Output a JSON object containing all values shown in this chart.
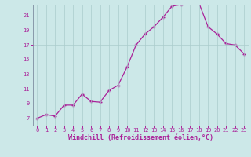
{
  "x": [
    0,
    1,
    2,
    3,
    4,
    5,
    6,
    7,
    8,
    9,
    10,
    11,
    12,
    13,
    14,
    15,
    16,
    17,
    18,
    19,
    20,
    21,
    22,
    23
  ],
  "y": [
    7.0,
    7.5,
    7.3,
    8.8,
    8.8,
    10.3,
    9.3,
    9.2,
    10.8,
    11.5,
    14.0,
    17.0,
    18.5,
    19.5,
    20.8,
    22.3,
    22.5,
    22.8,
    22.7,
    19.5,
    18.5,
    17.2,
    17.0,
    15.8
  ],
  "xlim": [
    -0.5,
    23.5
  ],
  "ylim": [
    6.0,
    22.5
  ],
  "xticks": [
    0,
    1,
    2,
    3,
    4,
    5,
    6,
    7,
    8,
    9,
    10,
    11,
    12,
    13,
    14,
    15,
    16,
    17,
    18,
    19,
    20,
    21,
    22,
    23
  ],
  "yticks": [
    7,
    9,
    11,
    13,
    15,
    17,
    19,
    21
  ],
  "xlabel": "Windchill (Refroidissement éolien,°C)",
  "line_color": "#aa2299",
  "marker": "+",
  "background_color": "#cce8e8",
  "grid_color": "#aacccc",
  "tick_label_color": "#aa2299",
  "xlabel_color": "#aa2299",
  "tick_fontsize": 5.0,
  "xlabel_fontsize": 6.0,
  "spine_color": "#8899aa"
}
